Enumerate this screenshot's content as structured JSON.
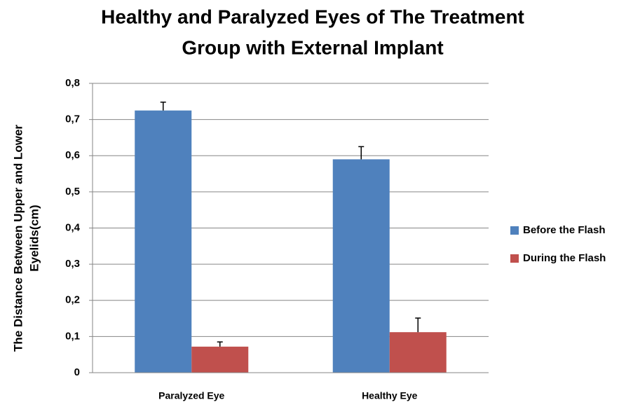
{
  "chart_data": {
    "type": "bar",
    "title": [
      "Healthy and Paralyzed Eyes of The Treatment",
      "Group with External Implant"
    ],
    "y_label": [
      "The Distance Between Upper and Lower",
      "Eyelids(cm)"
    ],
    "categories": [
      "Paralyzed Eye",
      "Healthy Eye"
    ],
    "series": [
      {
        "name": "Before the Flash",
        "color": "#4f81bd",
        "values": [
          0.725,
          0.59
        ],
        "errors": [
          0.023,
          0.035
        ]
      },
      {
        "name": "During the Flash",
        "color": "#c0504d",
        "values": [
          0.072,
          0.112
        ],
        "errors": [
          0.013,
          0.039
        ]
      }
    ],
    "ylim": [
      0,
      0.8
    ],
    "yticks": [
      0,
      {
        "value": 0.1,
        "label": "0,1"
      },
      {
        "value": 0.2,
        "label": "0,2"
      },
      {
        "value": 0.3,
        "label": "0,3"
      },
      {
        "value": 0.4,
        "label": "0,4"
      },
      {
        "value": 0.5,
        "label": "0,5"
      },
      {
        "value": 0.6,
        "label": "0,6"
      },
      {
        "value": 0.7,
        "label": "0,7"
      },
      {
        "value": 0.8,
        "label": "0,8"
      }
    ],
    "grid": true,
    "legend": "right"
  }
}
